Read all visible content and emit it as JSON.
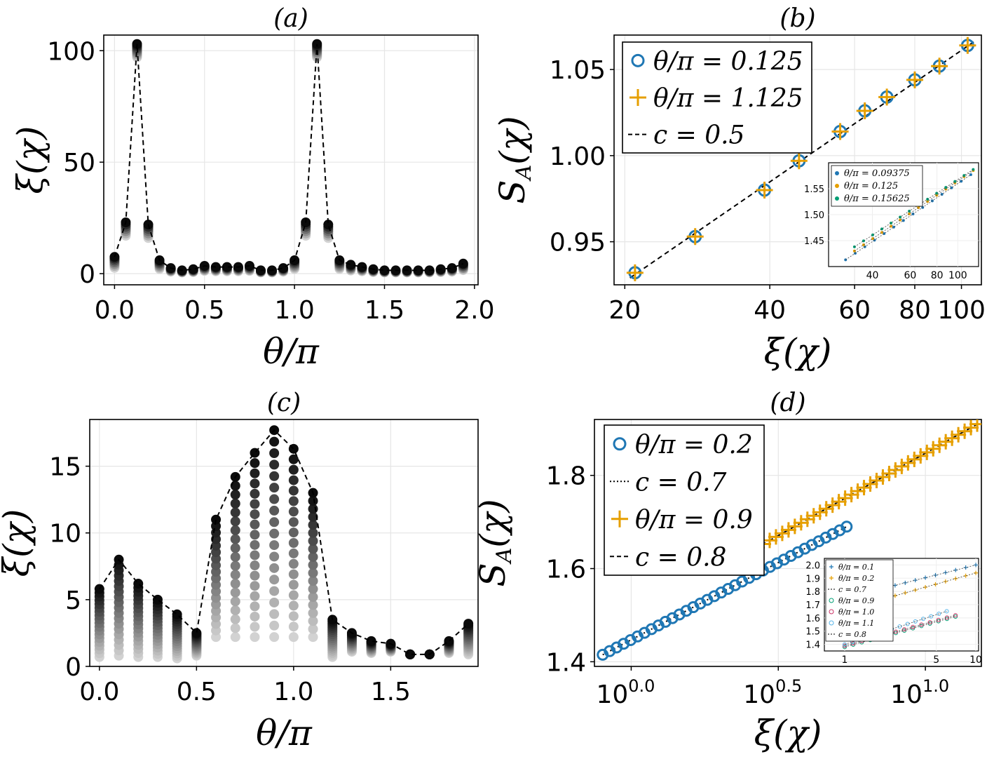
{
  "chart_data": [
    {
      "panel": "a",
      "type": "scatter",
      "title": "(a)",
      "xlabel": "θ/π",
      "ylabel": "ξ(χ)",
      "xlim": [
        -0.06,
        2.02
      ],
      "ylim": [
        -5,
        107
      ],
      "xticks": [
        0.0,
        0.5,
        1.0,
        1.5,
        2.0
      ],
      "xtick_labels": [
        "0.0",
        "0.5",
        "1.0",
        "1.5",
        "2.0"
      ],
      "yticks": [
        0,
        50,
        100
      ],
      "ytick_labels": [
        "0",
        "50",
        "100"
      ],
      "grid": true,
      "series": [
        {
          "x": [
            0.0,
            0.0625,
            0.125,
            0.1875,
            0.25,
            0.3125,
            0.375,
            0.4375,
            0.5,
            0.5625,
            0.625,
            0.6875,
            0.75,
            0.8125,
            0.875,
            0.9375,
            1.0,
            1.0625,
            1.125,
            1.1875,
            1.25,
            1.3125,
            1.375,
            1.4375,
            1.5,
            1.5625,
            1.625,
            1.6875,
            1.75,
            1.8125,
            1.875,
            1.9375
          ],
          "values": [
            7.5,
            23,
            103,
            22,
            6,
            2.5,
            1.5,
            2.0,
            3.5,
            3.0,
            3.0,
            3.0,
            3.5,
            1.5,
            1.5,
            2.5,
            6,
            23,
            103,
            22,
            6,
            4,
            3,
            2,
            1.5,
            1.5,
            1.5,
            1.5,
            1.5,
            2,
            2.5,
            4.5
          ]
        }
      ]
    },
    {
      "panel": "b",
      "type": "scatter",
      "title": "(b)",
      "xlabel": "ξ(χ)",
      "ylabel": "S_A(χ)",
      "xscale": "log",
      "xlim": [
        19,
        110
      ],
      "ylim": [
        0.925,
        1.07
      ],
      "xticks": [
        20,
        40,
        60,
        80,
        100
      ],
      "xtick_labels": [
        "20",
        "40",
        "60",
        "80",
        "100"
      ],
      "yticks": [
        0.95,
        1.0,
        1.05
      ],
      "ytick_labels": [
        "0.95",
        "1.00",
        "1.05"
      ],
      "grid": true,
      "legend": "top-left",
      "series": [
        {
          "name": "θ/π = 0.125",
          "color": "#1f77b4",
          "marker": "circle",
          "x": [
            21,
            28,
            39,
            46,
            56,
            63,
            70,
            80,
            90,
            103
          ],
          "values": [
            0.932,
            0.953,
            0.98,
            0.997,
            1.014,
            1.026,
            1.034,
            1.044,
            1.052,
            1.064
          ]
        },
        {
          "name": "θ/π = 1.125",
          "color": "#e69f00",
          "marker": "plus",
          "x": [
            21,
            28,
            39,
            46,
            56,
            63,
            70,
            80,
            90,
            103
          ],
          "values": [
            0.932,
            0.953,
            0.98,
            0.997,
            1.014,
            1.026,
            1.034,
            1.044,
            1.052,
            1.064
          ]
        },
        {
          "name": "c = 0.5",
          "color": "#000000",
          "line": "dashed",
          "x": [
            20.5,
            106
          ],
          "values": [
            0.929,
            1.066
          ]
        }
      ],
      "inset": {
        "xscale": "log",
        "xlim": [
          25,
          125
        ],
        "ylim": [
          1.4,
          1.6
        ],
        "xticks": [
          40,
          60,
          80,
          100
        ],
        "xtick_labels": [
          "40",
          "60",
          "80",
          "100"
        ],
        "yticks": [
          1.45,
          1.5,
          1.55
        ],
        "ytick_labels": [
          "1.45",
          "1.50",
          "1.55"
        ],
        "series": [
          {
            "name": "θ/π = 0.09375",
            "color": "#1f77b4",
            "x0": 30,
            "y0": 1.413,
            "x1": 115,
            "y1": 1.577
          },
          {
            "name": "θ/π = 0.125",
            "color": "#e69f00",
            "x0": 33,
            "y0": 1.43,
            "x1": 118,
            "y1": 1.585
          },
          {
            "name": "θ/π = 0.15625",
            "color": "#009e73",
            "x0": 33,
            "y0": 1.438,
            "x1": 118,
            "y1": 1.587
          }
        ]
      }
    },
    {
      "panel": "c",
      "type": "scatter",
      "title": "(c)",
      "xlabel": "θ/π",
      "ylabel": "ξ(χ)",
      "xlim": [
        -0.05,
        1.95
      ],
      "ylim": [
        0,
        18.5
      ],
      "xticks": [
        0.0,
        0.5,
        1.0,
        1.5
      ],
      "xtick_labels": [
        "0.0",
        "0.5",
        "1.0",
        "1.5"
      ],
      "yticks": [
        0,
        5,
        10,
        15
      ],
      "ytick_labels": [
        "0",
        "5",
        "10",
        "15"
      ],
      "grid": true,
      "series": [
        {
          "x": [
            0.0,
            0.1,
            0.2,
            0.3,
            0.4,
            0.5,
            0.6,
            0.7,
            0.8,
            0.9,
            1.0,
            1.1,
            1.2,
            1.3,
            1.4,
            1.5,
            1.6,
            1.7,
            1.8,
            1.9
          ],
          "values": [
            5.8,
            8.0,
            6.2,
            5.0,
            3.9,
            2.5,
            11.0,
            14.2,
            16.0,
            17.7,
            16.3,
            13.0,
            3.5,
            2.5,
            1.9,
            1.7,
            0.9,
            0.9,
            1.9,
            3.2
          ],
          "min_values": [
            0.7,
            0.8,
            0.7,
            0.7,
            0.6,
            0.8,
            2.2,
            2.2,
            2.2,
            2.2,
            2.2,
            2.2,
            0.7,
            1.1,
            1.0,
            1.1,
            0.9,
            0.9,
            1.0,
            0.9
          ]
        }
      ]
    },
    {
      "panel": "d",
      "type": "scatter",
      "title": "(d)",
      "xlabel": "ξ(χ)",
      "ylabel": "S_A(χ)",
      "xscale": "log",
      "xlim": [
        0.75,
        15.5
      ],
      "ylim": [
        1.39,
        1.92
      ],
      "xticks": [
        1,
        3.1623,
        10
      ],
      "xtick_labels": [
        "10",
        "10",
        "10"
      ],
      "xtick_exponents": [
        "0.0",
        "0.5",
        "1.0"
      ],
      "yticks": [
        1.4,
        1.6,
        1.8
      ],
      "ytick_labels": [
        "1.4",
        "1.6",
        "1.8"
      ],
      "grid": true,
      "legend": "top-left",
      "series": [
        {
          "name": "θ/π = 0.2",
          "color": "#1f77b4",
          "marker": "circle",
          "x_range": [
            0.8,
            5.4
          ],
          "y_range": [
            1.415,
            1.69
          ],
          "count": 36
        },
        {
          "name": "c = 0.7",
          "color": "#000000",
          "line": "dotted",
          "x": [
            0.8,
            5.4
          ],
          "values": [
            1.415,
            1.69
          ]
        },
        {
          "name": "θ/π = 0.9",
          "color": "#e69f00",
          "marker": "plus",
          "x_range": [
            2.2,
            15.0
          ],
          "y_range": [
            1.615,
            1.91
          ],
          "count": 40
        },
        {
          "name": "c = 0.8",
          "color": "#000000",
          "line": "dashed",
          "x": [
            2.2,
            15.0
          ],
          "values": [
            1.615,
            1.91
          ]
        }
      ],
      "inset": {
        "xscale": "log",
        "xlim": [
          0.7,
          10.5
        ],
        "ylim": [
          1.35,
          2.05
        ],
        "xticks": [
          1,
          5,
          10
        ],
        "xtick_labels": [
          "1",
          "5",
          "10"
        ],
        "yticks": [
          1.4,
          1.5,
          1.6,
          1.7,
          1.8,
          1.9,
          2.0
        ],
        "ytick_labels": [
          "1.4",
          "1.5",
          "1.6",
          "1.7",
          "1.8",
          "1.9",
          "2.0"
        ],
        "series": [
          {
            "name": "θ/π = 0.1",
            "color": "#1f77b4",
            "marker": "plus",
            "x0": 1.0,
            "y0": 1.75,
            "x1": 10.0,
            "y1": 2.0
          },
          {
            "name": "θ/π = 0.2",
            "color": "#e69f00",
            "marker": "plus",
            "x0": 1.0,
            "y0": 1.66,
            "x1": 10.0,
            "y1": 1.94
          },
          {
            "name": "c = 0.7",
            "color": "#000000",
            "line": "dotted"
          },
          {
            "name": "θ/π = 0.9",
            "color": "#009e73",
            "marker": "circle",
            "x0": 1.0,
            "y0": 1.38,
            "x1": 7.0,
            "y1": 1.61
          },
          {
            "name": "θ/π = 1.0",
            "color": "#cc3366",
            "marker": "circle",
            "x0": 1.0,
            "y0": 1.39,
            "x1": 7.0,
            "y1": 1.62
          },
          {
            "name": "θ/π = 1.1",
            "color": "#56b4e9",
            "marker": "circle",
            "x0": 1.0,
            "y0": 1.4,
            "x1": 6.0,
            "y1": 1.65
          },
          {
            "name": "c = 0.8",
            "color": "#000000",
            "line": "dotted"
          }
        ]
      }
    }
  ]
}
